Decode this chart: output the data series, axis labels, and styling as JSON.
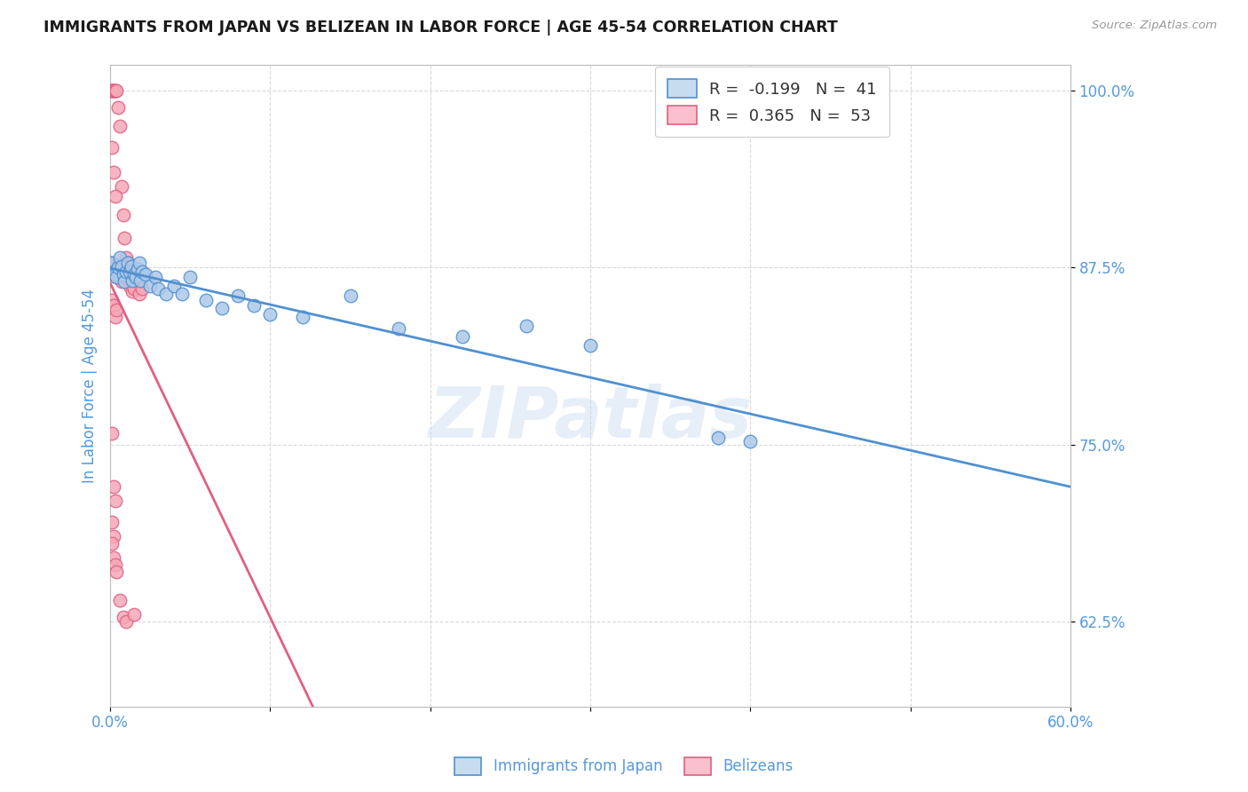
{
  "title": "IMMIGRANTS FROM JAPAN VS BELIZEAN IN LABOR FORCE | AGE 45-54 CORRELATION CHART",
  "source": "Source: ZipAtlas.com",
  "ylabel": "In Labor Force | Age 45-54",
  "x_min": 0.0,
  "x_max": 0.6,
  "y_min": 0.565,
  "y_max": 1.018,
  "x_ticks": [
    0.0,
    0.1,
    0.2,
    0.3,
    0.4,
    0.5,
    0.6
  ],
  "x_tick_labels": [
    "0.0%",
    "",
    "",
    "",
    "",
    "",
    "60.0%"
  ],
  "y_ticks": [
    0.625,
    0.75,
    0.875,
    1.0
  ],
  "y_tick_labels": [
    "62.5%",
    "75.0%",
    "87.5%",
    "100.0%"
  ],
  "legend1_R": "-0.199",
  "legend1_N": "41",
  "legend2_R": "0.365",
  "legend2_N": "53",
  "blue_color": "#adc8e8",
  "pink_color": "#f5a8b8",
  "blue_line_color": "#5090d0",
  "pink_line_color": "#e06080",
  "grid_color": "#d0d0d0",
  "text_color": "#5599dd",
  "japan_x": [
    0.001,
    0.002,
    0.003,
    0.004,
    0.005,
    0.006,
    0.007,
    0.008,
    0.009,
    0.01,
    0.011,
    0.012,
    0.013,
    0.014,
    0.015,
    0.016,
    0.017,
    0.018,
    0.019,
    0.02,
    0.022,
    0.025,
    0.028,
    0.03,
    0.035,
    0.04,
    0.045,
    0.05,
    0.06,
    0.07,
    0.08,
    0.09,
    0.1,
    0.12,
    0.15,
    0.18,
    0.22,
    0.26,
    0.3,
    0.38,
    0.4
  ],
  "japan_y": [
    0.878,
    0.872,
    0.87,
    0.868,
    0.875,
    0.882,
    0.876,
    0.87,
    0.865,
    0.872,
    0.878,
    0.872,
    0.876,
    0.866,
    0.87,
    0.868,
    0.874,
    0.878,
    0.866,
    0.872,
    0.87,
    0.862,
    0.868,
    0.86,
    0.856,
    0.862,
    0.856,
    0.868,
    0.852,
    0.846,
    0.855,
    0.848,
    0.842,
    0.84,
    0.855,
    0.832,
    0.826,
    0.834,
    0.82,
    0.755,
    0.752
  ],
  "belize_x": [
    0.0005,
    0.001,
    0.001,
    0.002,
    0.002,
    0.003,
    0.003,
    0.004,
    0.005,
    0.006,
    0.007,
    0.008,
    0.009,
    0.01,
    0.011,
    0.012,
    0.013,
    0.001,
    0.002,
    0.003,
    0.004,
    0.005,
    0.006,
    0.001,
    0.002,
    0.003,
    0.004,
    0.005,
    0.007,
    0.008,
    0.01,
    0.012,
    0.014,
    0.015,
    0.018,
    0.02,
    0.001,
    0.002,
    0.003,
    0.004,
    0.001,
    0.002,
    0.003,
    0.001,
    0.002,
    0.001,
    0.002,
    0.003,
    0.004,
    0.006,
    0.008,
    0.01,
    0.015
  ],
  "belize_y": [
    1.0,
    1.0,
    1.0,
    1.0,
    1.0,
    1.0,
    1.0,
    1.0,
    0.988,
    0.975,
    0.932,
    0.912,
    0.896,
    0.882,
    0.878,
    0.875,
    0.87,
    0.96,
    0.942,
    0.925,
    0.87,
    0.868,
    0.875,
    0.878,
    0.872,
    0.87,
    0.868,
    0.876,
    0.865,
    0.87,
    0.868,
    0.862,
    0.858,
    0.86,
    0.856,
    0.86,
    0.852,
    0.848,
    0.84,
    0.845,
    0.758,
    0.72,
    0.71,
    0.695,
    0.685,
    0.68,
    0.67,
    0.665,
    0.66,
    0.64,
    0.628,
    0.625,
    0.63
  ],
  "watermark": "ZIPatlas",
  "legend_box_color_blue": "#c8dcf0",
  "legend_box_color_pink": "#f8c0cc"
}
